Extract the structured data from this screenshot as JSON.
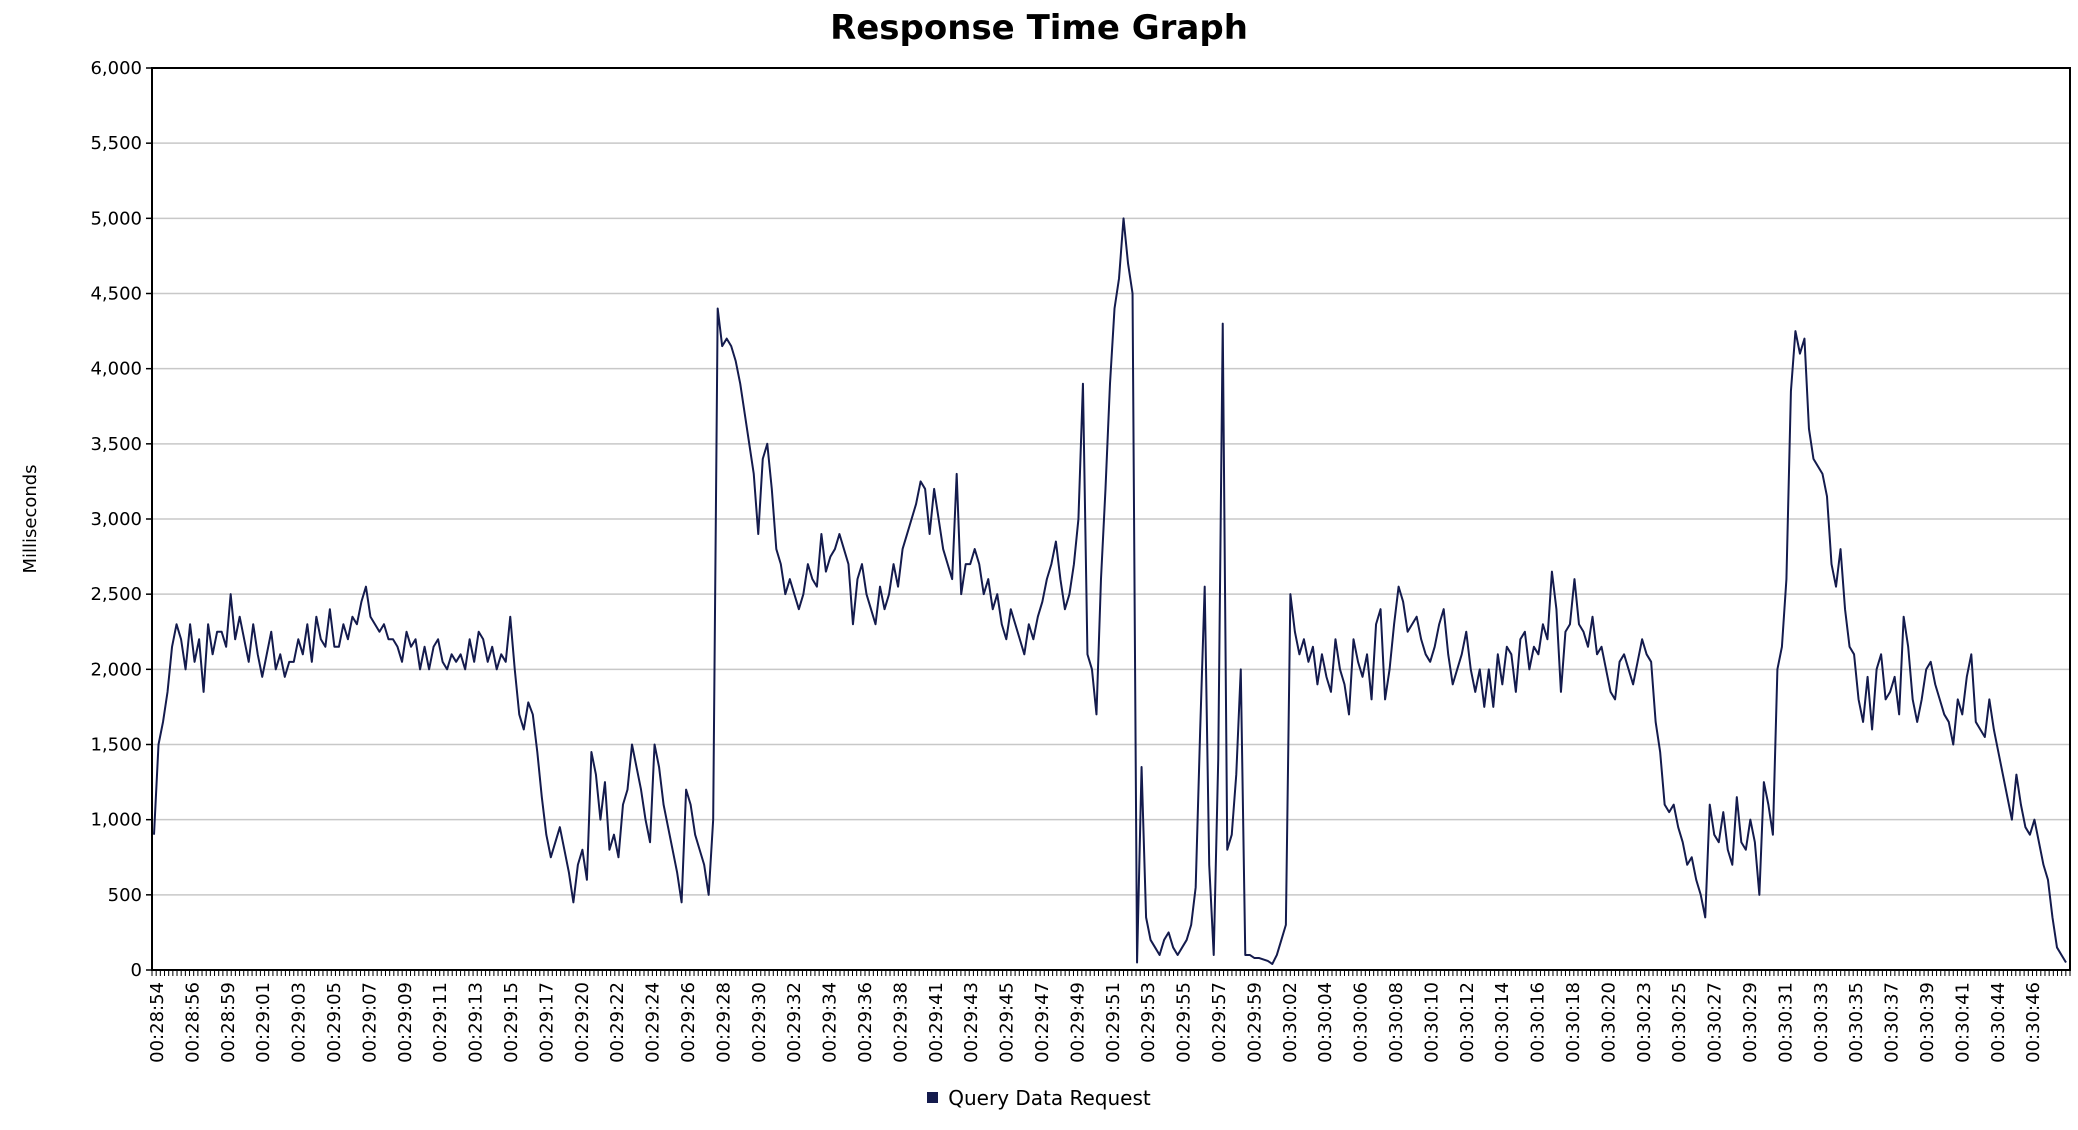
{
  "chart_data": {
    "type": "line",
    "title": "Response Time Graph",
    "xlabel": "",
    "ylabel": "Milliseconds",
    "ylim": [
      0,
      6000
    ],
    "yticks": [
      0,
      500,
      1000,
      1500,
      2000,
      2500,
      3000,
      3500,
      4000,
      4500,
      5000,
      5500,
      6000
    ],
    "ytick_labels": [
      "0",
      "500",
      "1,000",
      "1,500",
      "2,000",
      "2,500",
      "3,000",
      "3,500",
      "4,000",
      "4,500",
      "5,000",
      "5,500",
      "6,000"
    ],
    "xtick_labels": [
      "00:28:54",
      "00:28:56",
      "00:28:59",
      "00:29:01",
      "00:29:03",
      "00:29:05",
      "00:29:07",
      "00:29:09",
      "00:29:11",
      "00:29:13",
      "00:29:15",
      "00:29:17",
      "00:29:20",
      "00:29:22",
      "00:29:24",
      "00:29:26",
      "00:29:28",
      "00:29:30",
      "00:29:32",
      "00:29:34",
      "00:29:36",
      "00:29:38",
      "00:29:41",
      "00:29:43",
      "00:29:45",
      "00:29:47",
      "00:29:49",
      "00:29:51",
      "00:29:53",
      "00:29:55",
      "00:29:57",
      "00:29:59",
      "00:30:02",
      "00:30:04",
      "00:30:06",
      "00:30:08",
      "00:30:10",
      "00:30:12",
      "00:30:14",
      "00:30:16",
      "00:30:18",
      "00:30:20",
      "00:30:23",
      "00:30:25",
      "00:30:27",
      "00:30:29",
      "00:30:31",
      "00:30:33",
      "00:30:35",
      "00:30:37",
      "00:30:39",
      "00:30:41",
      "00:30:44",
      "00:30:46"
    ],
    "grid": true,
    "legend_position": "bottom-center",
    "series": [
      {
        "name": "Query Data Request",
        "color": "#141b4d",
        "values": [
          900,
          1500,
          1650,
          1850,
          2150,
          2300,
          2200,
          2000,
          2300,
          2050,
          2200,
          1850,
          2300,
          2100,
          2250,
          2250,
          2150,
          2500,
          2200,
          2350,
          2200,
          2050,
          2300,
          2100,
          1950,
          2100,
          2250,
          2000,
          2100,
          1950,
          2050,
          2050,
          2200,
          2100,
          2300,
          2050,
          2350,
          2200,
          2150,
          2400,
          2150,
          2150,
          2300,
          2200,
          2350,
          2300,
          2450,
          2550,
          2350,
          2300,
          2250,
          2300,
          2200,
          2200,
          2150,
          2050,
          2250,
          2150,
          2200,
          2000,
          2150,
          2000,
          2150,
          2200,
          2050,
          2000,
          2100,
          2050,
          2100,
          2000,
          2200,
          2050,
          2250,
          2200,
          2050,
          2150,
          2000,
          2100,
          2050,
          2350,
          2000,
          1700,
          1600,
          1780,
          1700,
          1450,
          1150,
          900,
          750,
          850,
          950,
          800,
          650,
          450,
          700,
          800,
          600,
          1450,
          1300,
          1000,
          1250,
          800,
          900,
          750,
          1100,
          1200,
          1500,
          1350,
          1200,
          1000,
          850,
          1500,
          1350,
          1100,
          950,
          800,
          650,
          450,
          1200,
          1100,
          900,
          800,
          700,
          500,
          1000,
          4400,
          4150,
          4200,
          4150,
          4050,
          3900,
          3700,
          3500,
          3300,
          2900,
          3400,
          3500,
          3200,
          2800,
          2700,
          2500,
          2600,
          2500,
          2400,
          2500,
          2700,
          2600,
          2550,
          2900,
          2650,
          2750,
          2800,
          2900,
          2800,
          2700,
          2300,
          2600,
          2700,
          2500,
          2400,
          2300,
          2550,
          2400,
          2500,
          2700,
          2550,
          2800,
          2900,
          3000,
          3100,
          3250,
          3200,
          2900,
          3200,
          3000,
          2800,
          2700,
          2600,
          3300,
          2500,
          2700,
          2700,
          2800,
          2700,
          2500,
          2600,
          2400,
          2500,
          2300,
          2200,
          2400,
          2300,
          2200,
          2100,
          2300,
          2200,
          2350,
          2450,
          2600,
          2700,
          2850,
          2600,
          2400,
          2500,
          2700,
          3000,
          3900,
          2100,
          2000,
          1700,
          2600,
          3200,
          3900,
          4400,
          4600,
          5000,
          4700,
          4500,
          50,
          1350,
          350,
          200,
          150,
          100,
          200,
          250,
          150,
          100,
          150,
          200,
          300,
          550,
          1600,
          2550,
          700,
          100,
          1400,
          4300,
          800,
          900,
          1300,
          2000,
          100,
          100,
          80,
          80,
          70,
          60,
          40,
          100,
          200,
          300,
          2500,
          2250,
          2100,
          2200,
          2050,
          2150,
          1900,
          2100,
          1950,
          1850,
          2200,
          2000,
          1900,
          1700,
          2200,
          2050,
          1950,
          2100,
          1800,
          2300,
          2400,
          1800,
          2000,
          2300,
          2550,
          2450,
          2250,
          2300,
          2350,
          2200,
          2100,
          2050,
          2150,
          2300,
          2400,
          2100,
          1900,
          2000,
          2100,
          2250,
          2000,
          1850,
          2000,
          1750,
          2000,
          1750,
          2100,
          1900,
          2150,
          2100,
          1850,
          2200,
          2250,
          2000,
          2150,
          2100,
          2300,
          2200,
          2650,
          2400,
          1850,
          2250,
          2300,
          2600,
          2300,
          2250,
          2150,
          2350,
          2100,
          2150,
          2000,
          1850,
          1800,
          2050,
          2100,
          2000,
          1900,
          2050,
          2200,
          2100,
          2050,
          1650,
          1450,
          1100,
          1050,
          1100,
          950,
          850,
          700,
          750,
          600,
          500,
          350,
          1100,
          900,
          850,
          1050,
          800,
          700,
          1150,
          850,
          800,
          1000,
          850,
          500,
          1250,
          1100,
          900,
          2000,
          2150,
          2600,
          3850,
          4250,
          4100,
          4200,
          3600,
          3400,
          3350,
          3300,
          3150,
          2700,
          2550,
          2800,
          2400,
          2150,
          2100,
          1800,
          1650,
          1950,
          1600,
          2000,
          2100,
          1800,
          1850,
          1950,
          1700,
          2350,
          2150,
          1800,
          1650,
          1800,
          2000,
          2050,
          1900,
          1800,
          1700,
          1650,
          1500,
          1800,
          1700,
          1950,
          2100,
          1650,
          1600,
          1550,
          1800,
          1600,
          1450,
          1300,
          1150,
          1000,
          1300,
          1100,
          950,
          900,
          1000,
          850,
          700,
          600,
          350,
          150,
          100,
          50
        ]
      }
    ]
  }
}
